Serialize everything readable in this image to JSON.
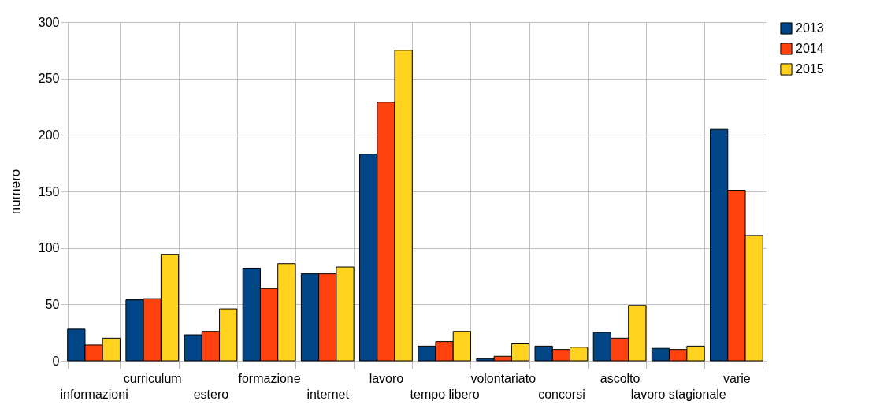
{
  "chart_data": {
    "type": "bar",
    "ylabel": "numero",
    "categories": [
      "informazioni",
      "curriculum",
      "estero",
      "formazione",
      "internet",
      "lavoro",
      "tempo libero",
      "volontariato",
      "concorsi",
      "ascolto",
      "lavoro stagionale",
      "varie"
    ],
    "series": [
      {
        "name": "2013",
        "color": "#004586",
        "values": [
          28,
          54,
          23,
          82,
          77,
          183,
          13,
          2,
          13,
          25,
          11,
          205
        ]
      },
      {
        "name": "2014",
        "color": "#ff420e",
        "values": [
          14,
          55,
          26,
          64,
          77,
          229,
          17,
          4,
          10,
          20,
          10,
          151
        ]
      },
      {
        "name": "2015",
        "color": "#ffd320",
        "values": [
          20,
          94,
          46,
          86,
          83,
          275,
          26,
          15,
          12,
          49,
          13,
          111
        ]
      }
    ],
    "ylim": [
      0,
      300
    ],
    "yticks": [
      0,
      50,
      100,
      150,
      200,
      250,
      300
    ],
    "grid": true,
    "legend": "right"
  }
}
